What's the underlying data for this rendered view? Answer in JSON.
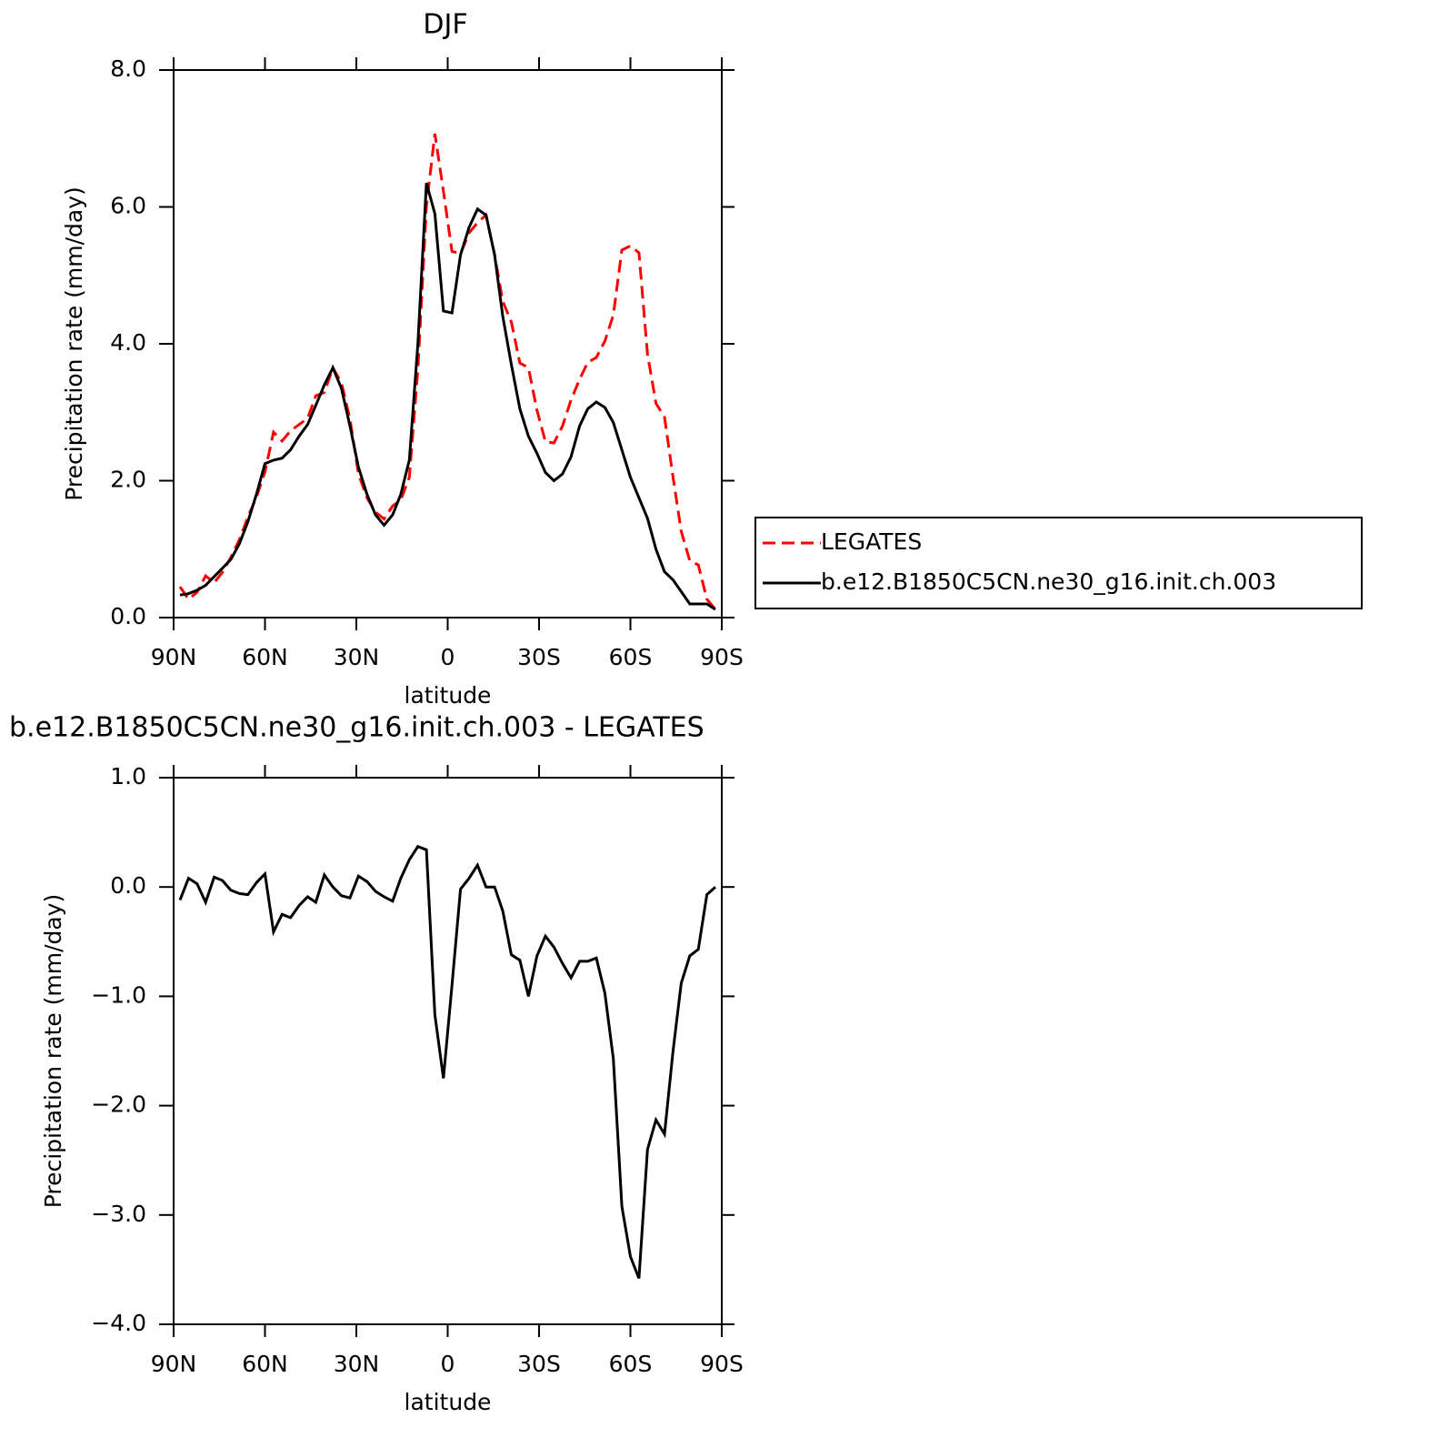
{
  "chart_data": [
    {
      "type": "line",
      "title": "DJF",
      "xlabel": "latitude",
      "ylabel": "Precipitation rate (mm/day)",
      "x": [
        87.9,
        85.1,
        82.3,
        79.5,
        76.7,
        74.0,
        71.2,
        68.4,
        65.6,
        62.8,
        60.0,
        57.2,
        54.4,
        51.6,
        48.8,
        46.0,
        43.3,
        40.5,
        37.7,
        34.9,
        32.1,
        29.3,
        26.5,
        23.7,
        20.9,
        18.1,
        15.4,
        12.6,
        9.8,
        7.0,
        4.2,
        1.4,
        -1.4,
        -4.2,
        -7.0,
        -9.8,
        -12.6,
        -15.4,
        -18.1,
        -20.9,
        -23.7,
        -26.5,
        -29.3,
        -32.1,
        -34.9,
        -37.7,
        -40.5,
        -43.3,
        -46.0,
        -48.8,
        -51.6,
        -54.4,
        -57.2,
        -60.0,
        -62.8,
        -65.6,
        -68.4,
        -71.2,
        -74.0,
        -76.7,
        -79.5,
        -82.3,
        -85.1,
        -87.9
      ],
      "series": [
        {
          "name": "LEGATES",
          "color": "#ff0000",
          "style": "dashed",
          "values": [
            0.45,
            0.27,
            0.37,
            0.61,
            0.51,
            0.66,
            0.88,
            1.14,
            1.47,
            1.76,
            2.13,
            2.71,
            2.58,
            2.73,
            2.82,
            2.91,
            3.24,
            3.29,
            3.65,
            3.43,
            2.9,
            2.1,
            1.75,
            1.54,
            1.44,
            1.63,
            1.72,
            2.05,
            3.63,
            6.01,
            7.07,
            6.23,
            5.35,
            5.32,
            5.62,
            5.77,
            5.88,
            5.3,
            4.62,
            4.32,
            3.72,
            3.65,
            3.03,
            2.57,
            2.55,
            2.8,
            3.18,
            3.48,
            3.73,
            3.8,
            4.04,
            4.42,
            5.37,
            5.43,
            5.33,
            3.85,
            3.13,
            2.93,
            2.05,
            1.26,
            0.83,
            0.77,
            0.27,
            0.12
          ]
        },
        {
          "name": "b.e12.B1850C5CN.ne30_g16.init.ch.003",
          "color": "#000000",
          "style": "solid",
          "values": [
            0.33,
            0.35,
            0.4,
            0.47,
            0.6,
            0.72,
            0.85,
            1.08,
            1.4,
            1.8,
            2.25,
            2.3,
            2.33,
            2.45,
            2.65,
            2.82,
            3.1,
            3.4,
            3.65,
            3.35,
            2.8,
            2.2,
            1.8,
            1.5,
            1.35,
            1.5,
            1.8,
            2.3,
            4.0,
            6.35,
            5.9,
            4.48,
            4.45,
            5.3,
            5.7,
            5.97,
            5.88,
            5.3,
            4.4,
            3.7,
            3.05,
            2.65,
            2.4,
            2.12,
            2.0,
            2.1,
            2.35,
            2.8,
            3.05,
            3.15,
            3.07,
            2.85,
            2.45,
            2.05,
            1.75,
            1.45,
            1.0,
            0.67,
            0.55,
            0.38,
            0.2,
            0.2,
            0.2,
            0.12
          ]
        }
      ],
      "xlim": [
        90,
        -90
      ],
      "xticks": [
        {
          "value": 90,
          "label": "90N"
        },
        {
          "value": 60,
          "label": "60N"
        },
        {
          "value": 30,
          "label": "30N"
        },
        0,
        {
          "value": -30,
          "label": "30S"
        },
        {
          "value": -60,
          "label": "60S"
        },
        {
          "value": -90,
          "label": "90S"
        }
      ],
      "ylim": [
        0,
        8
      ],
      "yticks": [
        {
          "value": 0,
          "label": "0.0"
        },
        {
          "value": 2,
          "label": "2.0"
        },
        {
          "value": 4,
          "label": "4.0"
        },
        {
          "value": 6,
          "label": "6.0"
        },
        {
          "value": 8,
          "label": "8.0"
        }
      ],
      "legend": "right"
    },
    {
      "type": "line",
      "title": "b.e12.B1850C5CN.ne30_g16.init.ch.003 - LEGATES",
      "xlabel": "latitude",
      "ylabel": "Precipitation rate (mm/day)",
      "x": [
        87.9,
        85.1,
        82.3,
        79.5,
        76.7,
        74.0,
        71.2,
        68.4,
        65.6,
        62.8,
        60.0,
        57.2,
        54.4,
        51.6,
        48.8,
        46.0,
        43.3,
        40.5,
        37.7,
        34.9,
        32.1,
        29.3,
        26.5,
        23.7,
        20.9,
        18.1,
        15.4,
        12.6,
        9.8,
        7.0,
        4.2,
        1.4,
        -1.4,
        -4.2,
        -7.0,
        -9.8,
        -12.6,
        -15.4,
        -18.1,
        -20.9,
        -23.7,
        -26.5,
        -29.3,
        -32.1,
        -34.9,
        -37.7,
        -40.5,
        -43.3,
        -46.0,
        -48.8,
        -51.6,
        -54.4,
        -57.2,
        -60.0,
        -62.8,
        -65.6,
        -68.4,
        -71.2,
        -74.0,
        -76.7,
        -79.5,
        -82.3,
        -85.1,
        -87.9
      ],
      "series": [
        {
          "color": "#000000",
          "style": "solid",
          "values": [
            -0.12,
            0.08,
            0.03,
            -0.14,
            0.09,
            0.06,
            -0.03,
            -0.06,
            -0.07,
            0.04,
            0.12,
            -0.41,
            -0.25,
            -0.28,
            -0.17,
            -0.09,
            -0.14,
            0.11,
            0.0,
            -0.08,
            -0.1,
            0.1,
            0.05,
            -0.04,
            -0.09,
            -0.13,
            0.08,
            0.25,
            0.37,
            0.34,
            -1.17,
            -1.75,
            -0.9,
            -0.02,
            0.08,
            0.2,
            0.0,
            0.0,
            -0.22,
            -0.62,
            -0.67,
            -1.0,
            -0.63,
            -0.45,
            -0.55,
            -0.7,
            -0.83,
            -0.68,
            -0.68,
            -0.65,
            -0.97,
            -1.57,
            -2.92,
            -3.38,
            -3.58,
            -2.4,
            -2.13,
            -2.26,
            -1.5,
            -0.88,
            -0.63,
            -0.57,
            -0.07,
            0.0
          ]
        }
      ],
      "xlim": [
        90,
        -90
      ],
      "xticks": [
        {
          "value": 90,
          "label": "90N"
        },
        {
          "value": 60,
          "label": "60N"
        },
        {
          "value": 30,
          "label": "30N"
        },
        0,
        {
          "value": -30,
          "label": "30S"
        },
        {
          "value": -60,
          "label": "60S"
        },
        {
          "value": -90,
          "label": "90S"
        }
      ],
      "ylim": [
        -4,
        1
      ],
      "yticks": [
        {
          "value": -4,
          "label": "−4.0"
        },
        {
          "value": -3,
          "label": "−3.0"
        },
        {
          "value": -2,
          "label": "−2.0"
        },
        {
          "value": -1,
          "label": "−1.0"
        },
        {
          "value": 0,
          "label": "0.0"
        },
        {
          "value": 1,
          "label": "1.0"
        }
      ]
    }
  ]
}
